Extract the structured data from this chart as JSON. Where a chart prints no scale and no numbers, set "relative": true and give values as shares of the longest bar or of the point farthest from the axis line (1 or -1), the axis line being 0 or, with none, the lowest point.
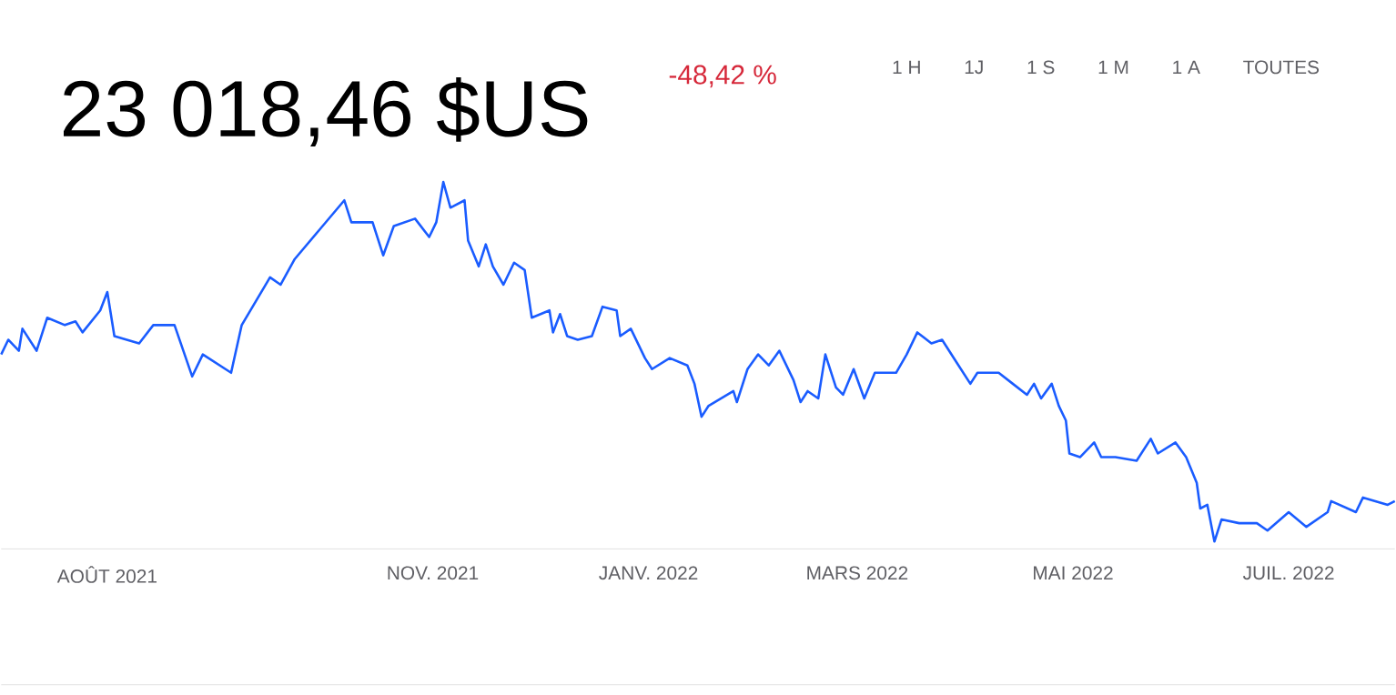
{
  "chart_data": {
    "type": "line",
    "title": "23 018,46 $US",
    "subtitle": "-48,42 %",
    "annotations": [
      "1 H",
      "1J",
      "1 S",
      "1 M",
      "1 A",
      "TOUTES"
    ],
    "relative": true,
    "color": "#1a5cff",
    "marker": "none",
    "line_style": "solid",
    "xlim": [
      "2021-07-02",
      "2022-07-31"
    ],
    "xticks": [
      {
        "value": "2021-08-01",
        "label": "AOÛT 2021"
      },
      {
        "value": "2021-11-01",
        "label": "NOV. 2021"
      },
      {
        "value": "2022-01-01",
        "label": "JANV. 2022"
      },
      {
        "value": "2022-03-01",
        "label": "MARS 2022"
      },
      {
        "value": "2022-05-01",
        "label": "MAI 2022"
      },
      {
        "value": "2022-07-01",
        "label": "JUIL. 2022"
      }
    ],
    "x": [
      "2021-07-02",
      "2021-07-04",
      "2021-07-07",
      "2021-07-08",
      "2021-07-12",
      "2021-07-15",
      "2021-07-20",
      "2021-07-23",
      "2021-07-25",
      "2021-07-30",
      "2021-08-01",
      "2021-08-03",
      "2021-08-10",
      "2021-08-14",
      "2021-08-20",
      "2021-08-25",
      "2021-08-28",
      "2021-09-05",
      "2021-09-08",
      "2021-09-16",
      "2021-09-19",
      "2021-09-23",
      "2021-09-30",
      "2021-10-07",
      "2021-10-09",
      "2021-10-15",
      "2021-10-18",
      "2021-10-21",
      "2021-10-27",
      "2021-10-31",
      "2021-11-02",
      "2021-11-04",
      "2021-11-06",
      "2021-11-10",
      "2021-11-11",
      "2021-11-14",
      "2021-11-16",
      "2021-11-18",
      "2021-11-21",
      "2021-11-24",
      "2021-11-27",
      "2021-11-29",
      "2021-12-04",
      "2021-12-05",
      "2021-12-07",
      "2021-12-09",
      "2021-12-12",
      "2021-12-16",
      "2021-12-19",
      "2021-12-23",
      "2021-12-24",
      "2021-12-27",
      "2021-12-31",
      "2022-01-02",
      "2022-01-07",
      "2022-01-12",
      "2022-01-14",
      "2022-01-16",
      "2022-01-18",
      "2022-01-25",
      "2022-01-26",
      "2022-01-29",
      "2022-02-01",
      "2022-02-04",
      "2022-02-07",
      "2022-02-11",
      "2022-02-13",
      "2022-02-15",
      "2022-02-18",
      "2022-02-20",
      "2022-02-23",
      "2022-02-25",
      "2022-02-28",
      "2022-03-03",
      "2022-03-06",
      "2022-03-12",
      "2022-03-15",
      "2022-03-18",
      "2022-03-22",
      "2022-03-25",
      "2022-03-29",
      "2022-04-02",
      "2022-04-04",
      "2022-04-10",
      "2022-04-14",
      "2022-04-18",
      "2022-04-20",
      "2022-04-22",
      "2022-04-25",
      "2022-04-27",
      "2022-04-29",
      "2022-04-30",
      "2022-05-03",
      "2022-05-07",
      "2022-05-09",
      "2022-05-13",
      "2022-05-19",
      "2022-05-23",
      "2022-05-25",
      "2022-05-30",
      "2022-06-02",
      "2022-06-05",
      "2022-06-06",
      "2022-06-08",
      "2022-06-10",
      "2022-06-12",
      "2022-06-17",
      "2022-06-22",
      "2022-06-25",
      "2022-07-01",
      "2022-07-06",
      "2022-07-12",
      "2022-07-13",
      "2022-07-20",
      "2022-07-22",
      "2022-07-29",
      "2022-07-31"
    ],
    "values": [
      0.53,
      0.57,
      0.54,
      0.6,
      0.54,
      0.63,
      0.61,
      0.62,
      0.59,
      0.65,
      0.7,
      0.58,
      0.56,
      0.61,
      0.61,
      0.47,
      0.53,
      0.48,
      0.61,
      0.74,
      0.72,
      0.79,
      0.87,
      0.95,
      0.89,
      0.89,
      0.8,
      0.88,
      0.9,
      0.85,
      0.89,
      1.0,
      0.93,
      0.95,
      0.84,
      0.77,
      0.83,
      0.77,
      0.72,
      0.78,
      0.76,
      0.63,
      0.65,
      0.59,
      0.64,
      0.58,
      0.57,
      0.58,
      0.66,
      0.65,
      0.58,
      0.6,
      0.52,
      0.49,
      0.52,
      0.5,
      0.45,
      0.36,
      0.39,
      0.43,
      0.4,
      0.49,
      0.53,
      0.5,
      0.54,
      0.46,
      0.4,
      0.43,
      0.41,
      0.53,
      0.44,
      0.42,
      0.49,
      0.41,
      0.48,
      0.48,
      0.53,
      0.59,
      0.56,
      0.57,
      0.51,
      0.45,
      0.48,
      0.48,
      0.45,
      0.42,
      0.45,
      0.41,
      0.45,
      0.39,
      0.35,
      0.26,
      0.25,
      0.29,
      0.25,
      0.25,
      0.24,
      0.3,
      0.26,
      0.29,
      0.25,
      0.18,
      0.11,
      0.12,
      0.02,
      0.08,
      0.07,
      0.07,
      0.05,
      0.1,
      0.06,
      0.1,
      0.13,
      0.1,
      0.14,
      0.12,
      0.13
    ]
  }
}
